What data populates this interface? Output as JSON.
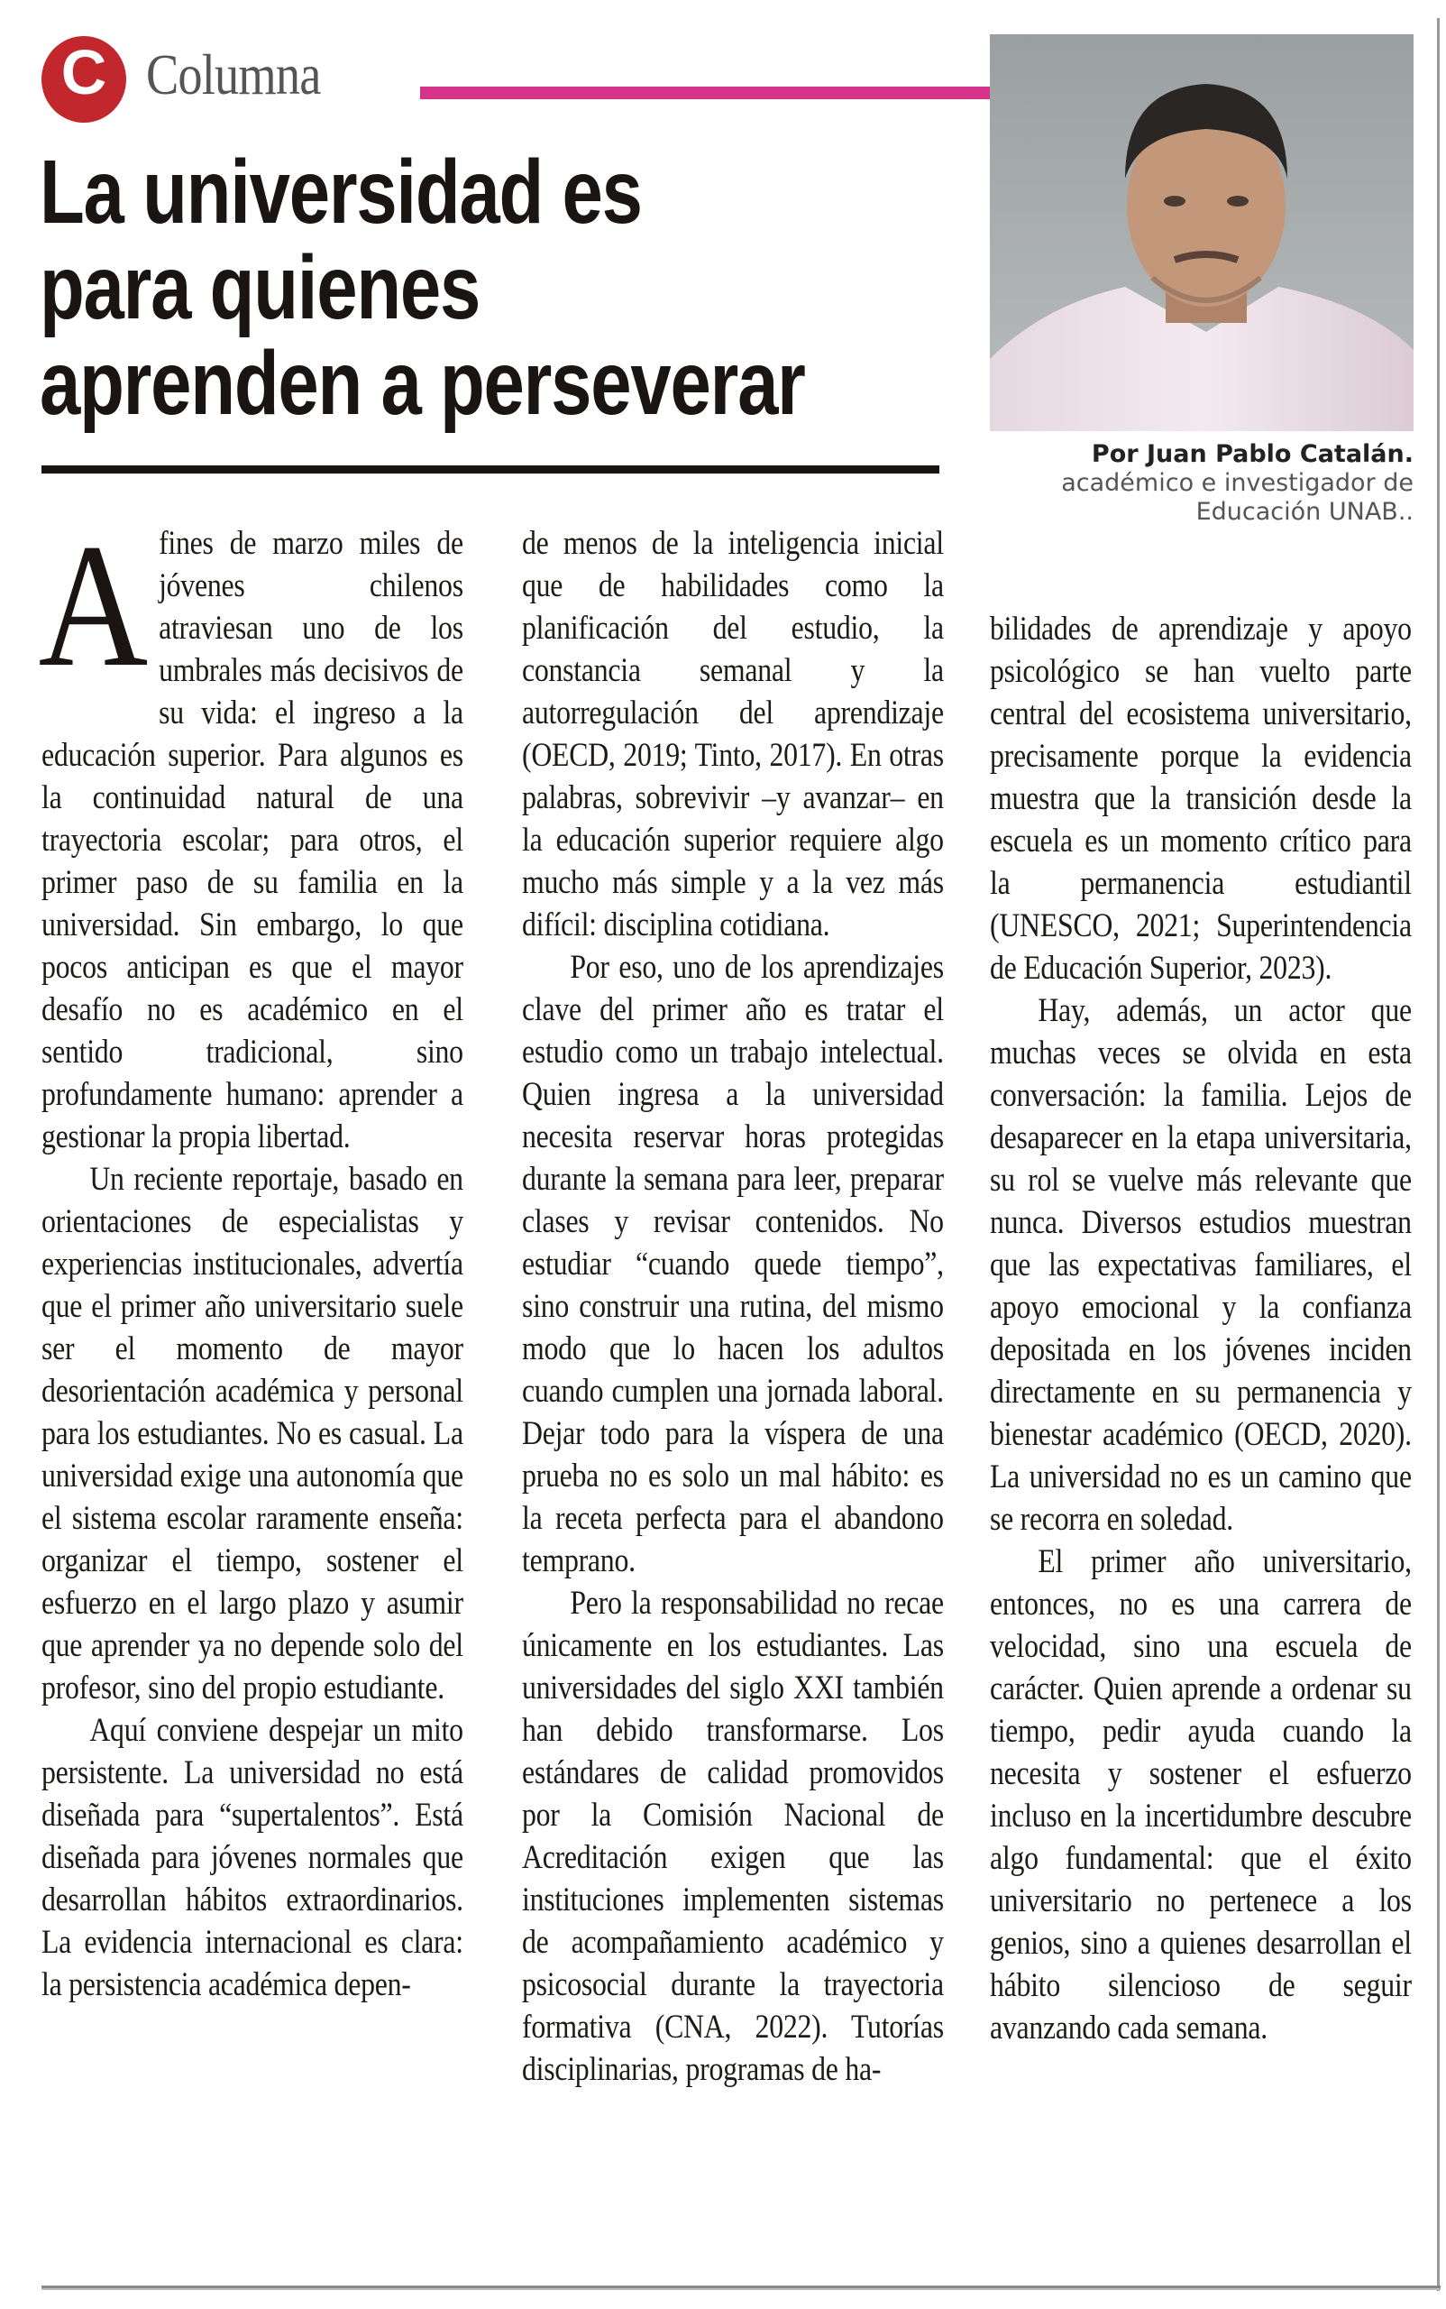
{
  "header": {
    "logo_letter": "C",
    "section_label": "Columna",
    "accent_color": "#d6338a",
    "logo_color": "#c1272d"
  },
  "headline": {
    "lines": [
      "La universidad es",
      "para quienes",
      "aprenden a perseverar"
    ]
  },
  "byline": {
    "author": "Por Juan Pablo Catalán.",
    "role_line1": "académico e investigador de",
    "role_line2": "Educación UNAB.."
  },
  "photo": {
    "subject": "portrait-of-author"
  },
  "article": {
    "dropcap": "A",
    "columns": [
      {
        "paragraphs": [
          "fines de marzo miles de jóvenes chilenos atraviesan uno de los umbrales más decisivos de su vida: el ingreso a la educación superior. Para algunos es la continuidad natural de una trayectoria escolar; para otros, el primer paso de su familia en la universidad. Sin embargo, lo que pocos anticipan es que el mayor desafío no es académico en el sentido tradicional, sino profundamente humano: aprender a gestionar la propia libertad.",
          "Un reciente reportaje, basado en orientaciones de especialistas y experiencias institucionales, advertía que el primer año universitario suele ser el momento de mayor desorientación académica y personal para los estudiantes. No es casual. La universidad exige una autonomía que el sistema escolar raramente enseña: organizar el tiempo, sostener el esfuerzo en el largo plazo y asumir que aprender ya no depende solo del profesor, sino del propio estudiante.",
          "Aquí conviene despejar un mito persistente. La universidad no está diseñada para “supertalentos”. Está diseñada para jóvenes normales que desarrollan hábitos extraordinarios. La evidencia internacional es clara: la persistencia académica depen-"
        ]
      },
      {
        "paragraphs": [
          "de menos de la inteligencia inicial que de habilidades como la planificación del estudio, la constancia semanal y la autorregulación del aprendizaje (OECD, 2019; Tinto, 2017). En otras palabras, sobrevivir –y avanzar– en la educación superior requiere algo mucho más simple y a la vez más difícil: disciplina cotidiana.",
          "Por eso, uno de los aprendizajes clave del primer año es tratar el estudio como un trabajo intelectual. Quien ingresa a la universidad necesita reservar horas protegidas durante la semana para leer, preparar clases y revisar contenidos. No estudiar “cuando quede tiempo”, sino construir una rutina, del mismo modo que lo hacen los adultos cuando cumplen una jornada laboral. Dejar todo para la víspera de una prueba no es solo un mal hábito: es la receta perfecta para el abandono temprano.",
          "Pero la responsabilidad no recae únicamente en los estudiantes. Las universidades del siglo XXI también han debido transformarse. Los estándares de calidad promovidos por la Comisión Nacional de Acreditación exigen que las instituciones implementen sistemas de acompañamiento académico y psicosocial durante la trayectoria formativa (CNA, 2022). Tutorías disciplinarias, programas de ha-"
        ]
      },
      {
        "paragraphs": [
          "bilidades de aprendizaje y apoyo psicológico se han vuelto parte central del ecosistema universitario, precisamente porque la evidencia muestra que la transición desde la escuela es un momento crítico para la permanencia estudiantil (UNESCO, 2021; Superintendencia de Educación Superior, 2023).",
          "Hay, además, un actor que muchas veces se olvida en esta conversación: la familia. Lejos de desaparecer en la etapa universitaria, su rol se vuelve más relevante que nunca. Diversos estudios muestran que las expectativas familiares, el apoyo emocional y la confianza depositada en los jóvenes inciden directamente en su permanencia y bienestar académico (OECD, 2020). La universidad no es un camino que se recorra en soledad.",
          "El primer año universitario, entonces, no es una carrera de velocidad, sino una escuela de carácter. Quien aprende a ordenar su tiempo, pedir ayuda cuando la necesita y sostener el esfuerzo incluso en la incertidumbre descubre algo fundamental: que el éxito universitario no pertenece a los genios, sino a quienes desarrollan el hábito silencioso de seguir avanzando cada semana."
        ]
      }
    ]
  }
}
